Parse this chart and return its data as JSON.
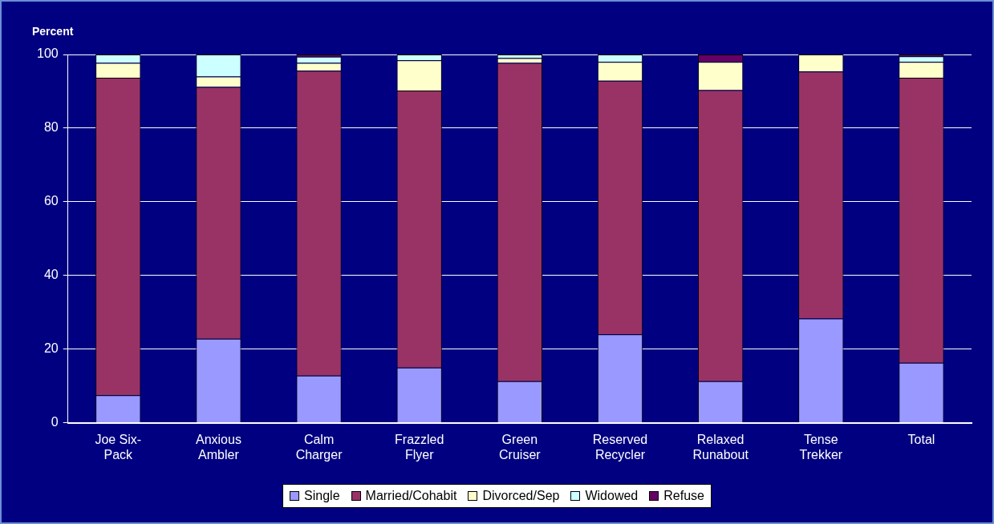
{
  "chart_data": {
    "type": "bar",
    "stacked": true,
    "ylabel": "Percent",
    "categories": [
      "Joe Six-Pack",
      "Anxious Ambler",
      "Calm Charger",
      "Frazzled Flyer",
      "Green Cruiser",
      "Reserved Recycler",
      "Relaxed Runabout",
      "Tense Trekker",
      "Total"
    ],
    "series": [
      {
        "name": "Single",
        "color": "#9999ff",
        "values": [
          7.5,
          22.8,
          12.8,
          15.0,
          11.3,
          24.0,
          11.3,
          28.3,
          16.3
        ]
      },
      {
        "name": "Married/Cohabit",
        "color": "#993366",
        "values": [
          86.2,
          68.4,
          82.8,
          75.2,
          86.4,
          68.9,
          79.0,
          67.1,
          77.4
        ]
      },
      {
        "name": "Divorced/Sep",
        "color": "#ffffcc",
        "values": [
          4.0,
          2.8,
          2.1,
          8.2,
          1.3,
          5.1,
          7.7,
          4.6,
          4.3
        ]
      },
      {
        "name": "Widowed",
        "color": "#ccffff",
        "values": [
          2.3,
          6.0,
          1.7,
          1.6,
          1.0,
          2.0,
          0,
          0,
          1.5
        ]
      },
      {
        "name": "Refuse",
        "color": "#660066",
        "values": [
          0,
          0,
          0.6,
          0,
          0,
          0,
          2.0,
          0,
          0.5
        ]
      }
    ],
    "ylim": [
      0,
      100
    ],
    "yticks": [
      0,
      20,
      40,
      60,
      80,
      100
    ],
    "grid": "y",
    "legend": "bottom"
  }
}
